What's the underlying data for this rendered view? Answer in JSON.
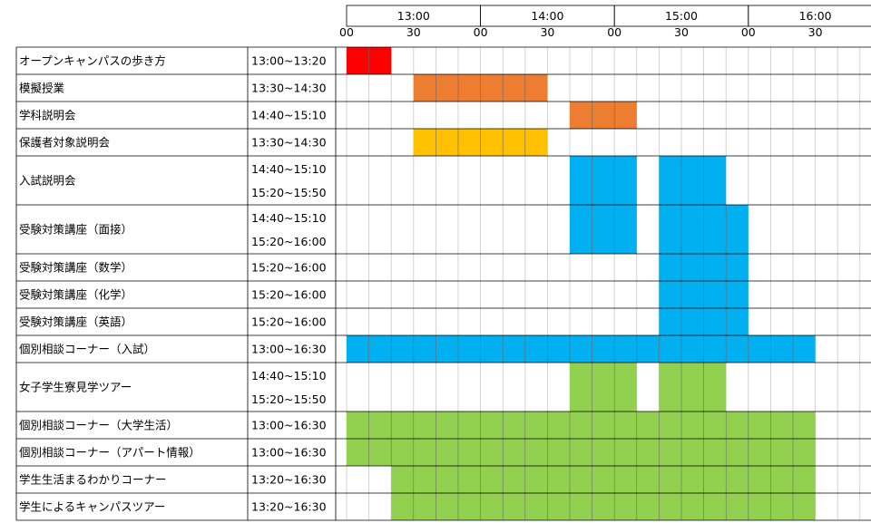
{
  "chart_data": {
    "type": "table",
    "hour_labels": [
      "13:00",
      "14:00",
      "15:00",
      "16:00"
    ],
    "minute_labels": [
      "00",
      "30",
      "00",
      "30",
      "00",
      "30",
      "00",
      "30"
    ],
    "time_range": [
      "13:00",
      "17:00"
    ],
    "slot_minutes": 10,
    "colors": {
      "red": "#ff0000",
      "orange": "#ed7d31",
      "yellow": "#ffc000",
      "blue": "#00b0f0",
      "green": "#92d050"
    },
    "rows": [
      {
        "name": "オープンキャンパスの歩き方",
        "times": [
          "13:00~13:20"
        ],
        "color": "red",
        "bars": [
          {
            "start": "13:00",
            "end": "13:20"
          }
        ]
      },
      {
        "name": "模擬授業",
        "times": [
          "13:30~14:30"
        ],
        "color": "orange",
        "bars": [
          {
            "start": "13:30",
            "end": "14:30"
          }
        ]
      },
      {
        "name": "学科説明会",
        "times": [
          "14:40~15:10"
        ],
        "color": "orange",
        "bars": [
          {
            "start": "14:40",
            "end": "15:10"
          }
        ]
      },
      {
        "name": "保護者対象説明会",
        "times": [
          "13:30~14:30"
        ],
        "color": "yellow",
        "bars": [
          {
            "start": "13:30",
            "end": "14:30"
          }
        ]
      },
      {
        "name": "入試説明会",
        "times": [
          "14:40~15:10",
          "15:20~15:50"
        ],
        "color": "blue",
        "bars": [
          {
            "start": "14:40",
            "end": "15:10"
          },
          {
            "start": "15:20",
            "end": "15:50"
          }
        ]
      },
      {
        "name": "受験対策講座（面接）",
        "times": [
          "14:40~15:10",
          "15:20~16:00"
        ],
        "color": "blue",
        "bars": [
          {
            "start": "14:40",
            "end": "15:10"
          },
          {
            "start": "15:20",
            "end": "16:00"
          }
        ]
      },
      {
        "name": "受験対策講座（数学）",
        "times": [
          "15:20~16:00"
        ],
        "color": "blue",
        "bars": [
          {
            "start": "15:20",
            "end": "16:00"
          }
        ]
      },
      {
        "name": "受験対策講座（化学）",
        "times": [
          "15:20~16:00"
        ],
        "color": "blue",
        "bars": [
          {
            "start": "15:20",
            "end": "16:00"
          }
        ]
      },
      {
        "name": "受験対策講座（英語）",
        "times": [
          "15:20~16:00"
        ],
        "color": "blue",
        "bars": [
          {
            "start": "15:20",
            "end": "16:00"
          }
        ]
      },
      {
        "name": "個別相談コーナー（入試）",
        "times": [
          "13:00~16:30"
        ],
        "color": "blue",
        "bars": [
          {
            "start": "13:00",
            "end": "16:30"
          }
        ]
      },
      {
        "name": "女子学生寮見学ツアー",
        "times": [
          "14:40~15:10",
          "15:20~15:50"
        ],
        "color": "green",
        "bars": [
          {
            "start": "14:40",
            "end": "15:10"
          },
          {
            "start": "15:20",
            "end": "15:50"
          }
        ]
      },
      {
        "name": "個別相談コーナー（大学生活）",
        "times": [
          "13:00~16:30"
        ],
        "color": "green",
        "bars": [
          {
            "start": "13:00",
            "end": "16:30"
          }
        ]
      },
      {
        "name": "個別相談コーナー（アパート情報）",
        "times": [
          "13:00~16:30"
        ],
        "color": "green",
        "bars": [
          {
            "start": "13:00",
            "end": "16:30"
          }
        ]
      },
      {
        "name": "学生生活まるわかりコーナー",
        "times": [
          "13:20~16:30"
        ],
        "color": "green",
        "bars": [
          {
            "start": "13:20",
            "end": "16:30"
          }
        ]
      },
      {
        "name": "学生によるキャンパスツアー",
        "times": [
          "13:20~16:30"
        ],
        "color": "green",
        "bars": [
          {
            "start": "13:20",
            "end": "16:30"
          }
        ]
      }
    ]
  }
}
